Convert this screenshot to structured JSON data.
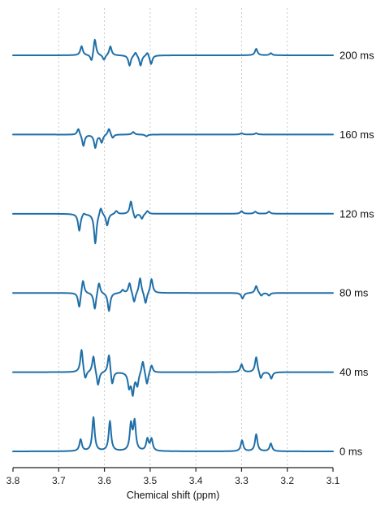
{
  "chart_data": {
    "type": "line",
    "xlabel": "Chemical shift (ppm)",
    "ylabel": "",
    "xlim": [
      3.8,
      3.1
    ],
    "x_reversed": true,
    "grid": true,
    "x_ticks": [
      3.8,
      3.7,
      3.6,
      3.5,
      3.4,
      3.3,
      3.2,
      3.1
    ],
    "x_tick_labels": [
      "3.8",
      "3.7",
      "3.6",
      "3.5",
      "3.4",
      "3.3",
      "3.2",
      "3.1"
    ],
    "series": [
      {
        "name": "0 ms",
        "peaks": [
          [
            3.652,
            0.45
          ],
          [
            3.624,
            1.3
          ],
          [
            3.588,
            1.15
          ],
          [
            3.542,
            1.0
          ],
          [
            3.534,
            1.1
          ],
          [
            3.506,
            0.45
          ],
          [
            3.497,
            0.45
          ],
          [
            3.299,
            0.42
          ],
          [
            3.268,
            0.65
          ],
          [
            3.236,
            0.3
          ]
        ]
      },
      {
        "name": "40 ms",
        "peaks": [
          [
            3.65,
            0.9
          ],
          [
            3.642,
            -0.35
          ],
          [
            3.624,
            0.65
          ],
          [
            3.614,
            -0.55
          ],
          [
            3.59,
            0.75
          ],
          [
            3.583,
            -0.55
          ],
          [
            3.546,
            -0.55
          ],
          [
            3.538,
            -0.8
          ],
          [
            3.528,
            -0.5
          ],
          [
            3.516,
            0.5
          ],
          [
            3.507,
            -0.5
          ],
          [
            3.497,
            0.3
          ],
          [
            3.3,
            0.3
          ],
          [
            3.268,
            0.6
          ],
          [
            3.258,
            -0.28
          ],
          [
            3.235,
            -0.25
          ]
        ]
      },
      {
        "name": "80 ms",
        "peaks": [
          [
            3.655,
            -0.6
          ],
          [
            3.647,
            0.55
          ],
          [
            3.621,
            -0.65
          ],
          [
            3.612,
            0.45
          ],
          [
            3.59,
            -0.7
          ],
          [
            3.56,
            0.12
          ],
          [
            3.545,
            0.4
          ],
          [
            3.535,
            -0.4
          ],
          [
            3.522,
            0.6
          ],
          [
            3.51,
            -0.45
          ],
          [
            3.497,
            0.55
          ],
          [
            3.298,
            -0.22
          ],
          [
            3.268,
            0.28
          ],
          [
            3.257,
            -0.12
          ],
          [
            3.24,
            -0.1
          ]
        ]
      },
      {
        "name": "120 ms",
        "peaks": [
          [
            3.655,
            -0.65
          ],
          [
            3.645,
            0.08
          ],
          [
            3.62,
            -1.15
          ],
          [
            3.608,
            0.3
          ],
          [
            3.594,
            -0.45
          ],
          [
            3.574,
            0.12
          ],
          [
            3.542,
            0.5
          ],
          [
            3.533,
            -0.2
          ],
          [
            3.518,
            -0.2
          ],
          [
            3.506,
            0.12
          ],
          [
            3.3,
            0.1
          ],
          [
            3.27,
            0.08
          ],
          [
            3.24,
            0.08
          ]
        ]
      },
      {
        "name": "160 ms",
        "peaks": [
          [
            3.657,
            0.25
          ],
          [
            3.646,
            -0.45
          ],
          [
            3.62,
            -0.5
          ],
          [
            3.606,
            -0.3
          ],
          [
            3.59,
            0.25
          ],
          [
            3.582,
            -0.15
          ],
          [
            3.537,
            0.1
          ],
          [
            3.508,
            -0.07
          ],
          [
            3.3,
            0.05
          ],
          [
            3.268,
            0.05
          ]
        ]
      },
      {
        "name": "200 ms",
        "peaks": [
          [
            3.65,
            0.35
          ],
          [
            3.628,
            -0.3
          ],
          [
            3.621,
            0.65
          ],
          [
            3.601,
            -0.2
          ],
          [
            3.587,
            0.35
          ],
          [
            3.545,
            -0.4
          ],
          [
            3.532,
            0.15
          ],
          [
            3.521,
            -0.4
          ],
          [
            3.506,
            0.15
          ],
          [
            3.498,
            -0.35
          ],
          [
            3.268,
            0.25
          ],
          [
            3.236,
            0.08
          ]
        ]
      }
    ]
  }
}
